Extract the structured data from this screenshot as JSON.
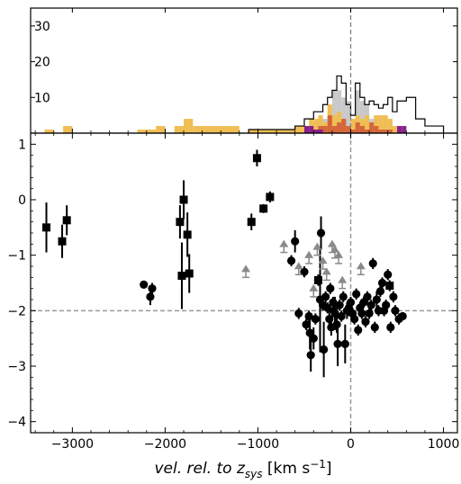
{
  "chart_data": [
    {
      "type": "histogram",
      "panel": "top",
      "ylim": [
        0,
        35
      ],
      "yticks": [
        "10",
        "20",
        "30"
      ],
      "grid": false,
      "series": [
        {
          "color": "#000000",
          "style": "step-outline",
          "edges": [
            -1100,
            -1000,
            -900,
            -800,
            -700,
            -600,
            -500,
            -400,
            -300,
            -250,
            -200,
            -150,
            -100,
            -50,
            0,
            50,
            100,
            150,
            200,
            250,
            300,
            350,
            400,
            450,
            500,
            600,
            700,
            800,
            900,
            1000
          ],
          "values": [
            1,
            1,
            1,
            1,
            1,
            2,
            4,
            6,
            8,
            10,
            12,
            16,
            14,
            8,
            5,
            14,
            10,
            8,
            9,
            8,
            7,
            8,
            10,
            6,
            9,
            10,
            4,
            2,
            2
          ]
        },
        {
          "color": "#c9c9c9",
          "style": "filled",
          "edges": [
            -400,
            -300,
            -250,
            -200,
            -150,
            -100,
            -50,
            0,
            50,
            100,
            150,
            200,
            250,
            300,
            350,
            400,
            450
          ],
          "values": [
            3,
            4,
            4,
            12,
            12,
            10,
            9,
            4,
            12,
            9,
            8,
            4,
            4,
            3,
            3,
            3
          ]
        },
        {
          "color": "#f0be55",
          "style": "filled",
          "edges": [
            -3300,
            -3200,
            -3100,
            -3000,
            -2900,
            -2300,
            -2200,
            -2100,
            -2000,
            -1900,
            -1800,
            -1700,
            -1200,
            -1100,
            -1000,
            -900,
            -800,
            -600,
            -500,
            -450,
            -400,
            -350,
            -300,
            -250,
            -200,
            -150,
            -100,
            -50,
            0,
            50,
            100,
            150,
            200,
            250,
            300,
            350,
            400,
            450,
            500
          ],
          "values": [
            1,
            0,
            2,
            0,
            0,
            1,
            1,
            2,
            0,
            2,
            4,
            2,
            0,
            1,
            1,
            1,
            1,
            2,
            2,
            4,
            4,
            5,
            3,
            8,
            5,
            6,
            4,
            2,
            4,
            5,
            4,
            5,
            2,
            5,
            5,
            5,
            4,
            2
          ]
        },
        {
          "color": "#d4663a",
          "style": "filled",
          "edges": [
            -400,
            -350,
            -300,
            -250,
            -200,
            -150,
            -100,
            -50,
            0,
            50,
            100,
            150,
            200,
            250,
            300,
            350,
            400,
            450
          ],
          "values": [
            1,
            2,
            2,
            5,
            2,
            3,
            4,
            2,
            1,
            3,
            2,
            1,
            3,
            2,
            1,
            1,
            1
          ]
        },
        {
          "color": "#8a1f8c",
          "style": "filled",
          "edges": [
            -500,
            -450,
            -400,
            -350,
            -300,
            -250,
            -200,
            -150,
            -100,
            -50,
            0,
            50,
            100,
            150,
            200,
            250,
            300,
            350,
            400,
            450,
            500,
            550,
            600
          ],
          "values": [
            2,
            2,
            1,
            1,
            0,
            0,
            0,
            0,
            0,
            0,
            0,
            0,
            0,
            0,
            0,
            0,
            0,
            0,
            0,
            0,
            2,
            2
          ]
        }
      ]
    },
    {
      "type": "scatter",
      "panel": "main",
      "xlabel_italic": "vel. rel. to z",
      "xlabel_sub": "sys",
      "xlabel_units": " [km s",
      "xlabel_sup": "−1",
      "xlabel_close": "]",
      "xlim": [
        -3450,
        1150
      ],
      "ylim": [
        -4.2,
        1.2
      ],
      "xticks": [
        -3000,
        -2000,
        -1000,
        0,
        1000
      ],
      "xtick_labels": [
        "−3000",
        "−2000",
        "−1000",
        "0",
        "1000"
      ],
      "yticks": [
        -4,
        -3,
        -2,
        -1,
        0,
        1
      ],
      "ytick_labels": [
        "−4",
        "−3",
        "−2",
        "−1",
        "0",
        "1"
      ],
      "reference_lines": {
        "x": 0,
        "y": -2,
        "color": "#999999",
        "style": "dashed"
      },
      "grid": false,
      "series": [
        {
          "marker": "square",
          "color": "#000000",
          "points": [
            {
              "x": -3280,
              "y": -0.5,
              "err": 0.45
            },
            {
              "x": -3110,
              "y": -0.75,
              "err": 0.3
            },
            {
              "x": -3060,
              "y": -0.37,
              "err": 0.27
            },
            {
              "x": -1840,
              "y": -0.4,
              "err": 0.3
            },
            {
              "x": -1820,
              "y": -1.37,
              "err": 0.6
            },
            {
              "x": -1800,
              "y": 0.0,
              "err": 0.35
            },
            {
              "x": -1760,
              "y": -0.63,
              "err": 0.4
            },
            {
              "x": -1740,
              "y": -1.33,
              "err": 0.35
            },
            {
              "x": -1070,
              "y": -0.4,
              "err": 0.15
            },
            {
              "x": -1010,
              "y": 0.75,
              "err": 0.15
            },
            {
              "x": -940,
              "y": -0.16,
              "err": 0.08
            },
            {
              "x": -870,
              "y": 0.05,
              "err": 0.1
            },
            {
              "x": -350,
              "y": -1.45,
              "err": 0.1
            },
            {
              "x": 420,
              "y": -1.55,
              "err": 0.1
            }
          ]
        },
        {
          "marker": "circle",
          "color": "#000000",
          "points": [
            {
              "x": -2230,
              "y": -1.53,
              "err": 0.05
            },
            {
              "x": -2160,
              "y": -1.75,
              "err": 0.15
            },
            {
              "x": -2140,
              "y": -1.6,
              "err": 0.1
            },
            {
              "x": -640,
              "y": -1.1,
              "err": 0.1
            },
            {
              "x": -600,
              "y": -0.75,
              "err": 0.2
            },
            {
              "x": -560,
              "y": -2.05,
              "err": 0.1
            },
            {
              "x": -500,
              "y": -1.3,
              "err": 0.1
            },
            {
              "x": -480,
              "y": -2.25,
              "err": 0.1
            },
            {
              "x": -450,
              "y": -2.1,
              "err": 0.1
            },
            {
              "x": -440,
              "y": -2.4,
              "err": 0.3
            },
            {
              "x": -430,
              "y": -2.8,
              "err": 0.3
            },
            {
              "x": -400,
              "y": -2.5,
              "err": 0.2
            },
            {
              "x": -380,
              "y": -2.15,
              "err": 0.1
            },
            {
              "x": -350,
              "y": -1.45,
              "err": 0.1
            },
            {
              "x": -330,
              "y": -1.8,
              "err": 0.95
            },
            {
              "x": -320,
              "y": -0.6,
              "err": 0.3
            },
            {
              "x": -300,
              "y": -1.9,
              "err": 0.1
            },
            {
              "x": -290,
              "y": -2.7,
              "err": 0.5
            },
            {
              "x": -270,
              "y": -1.75,
              "err": 0.1
            },
            {
              "x": -250,
              "y": -1.95,
              "err": 0.1
            },
            {
              "x": -230,
              "y": -2.15,
              "err": 0.15
            },
            {
              "x": -220,
              "y": -1.6,
              "err": 0.1
            },
            {
              "x": -210,
              "y": -2.3,
              "err": 0.15
            },
            {
              "x": -190,
              "y": -1.85,
              "err": 0.1
            },
            {
              "x": -180,
              "y": -2.0,
              "err": 0.1
            },
            {
              "x": -170,
              "y": -2.05,
              "err": 0.3
            },
            {
              "x": -150,
              "y": -2.25,
              "err": 0.15
            },
            {
              "x": -140,
              "y": -2.6,
              "err": 0.4
            },
            {
              "x": -120,
              "y": -1.9,
              "err": 0.1
            },
            {
              "x": -100,
              "y": -2.1,
              "err": 0.1
            },
            {
              "x": -80,
              "y": -1.75,
              "err": 0.1
            },
            {
              "x": -60,
              "y": -2.6,
              "err": 0.35
            },
            {
              "x": -40,
              "y": -2.0,
              "err": 0.15
            },
            {
              "x": -20,
              "y": -1.95,
              "err": 0.15
            },
            {
              "x": 0,
              "y": -1.85,
              "err": 0.1
            },
            {
              "x": 20,
              "y": -2.05,
              "err": 0.1
            },
            {
              "x": 40,
              "y": -2.15,
              "err": 0.1
            },
            {
              "x": 60,
              "y": -1.7,
              "err": 0.1
            },
            {
              "x": 80,
              "y": -2.35,
              "err": 0.1
            },
            {
              "x": 100,
              "y": -1.95,
              "err": 0.1
            },
            {
              "x": 120,
              "y": -2.05,
              "err": 0.1
            },
            {
              "x": 140,
              "y": -1.85,
              "err": 0.1
            },
            {
              "x": 160,
              "y": -2.2,
              "err": 0.1
            },
            {
              "x": 180,
              "y": -1.75,
              "err": 0.1
            },
            {
              "x": 200,
              "y": -2.05,
              "err": 0.1
            },
            {
              "x": 220,
              "y": -1.9,
              "err": 0.1
            },
            {
              "x": 240,
              "y": -1.15,
              "err": 0.1
            },
            {
              "x": 260,
              "y": -2.3,
              "err": 0.1
            },
            {
              "x": 280,
              "y": -1.8,
              "err": 0.15
            },
            {
              "x": 300,
              "y": -2.0,
              "err": 0.1
            },
            {
              "x": 320,
              "y": -1.65,
              "err": 0.1
            },
            {
              "x": 340,
              "y": -1.5,
              "err": 0.1
            },
            {
              "x": 360,
              "y": -2.0,
              "err": 0.1
            },
            {
              "x": 380,
              "y": -1.9,
              "err": 0.1
            },
            {
              "x": 400,
              "y": -1.35,
              "err": 0.1
            },
            {
              "x": 430,
              "y": -2.3,
              "err": 0.1
            },
            {
              "x": 460,
              "y": -1.75,
              "err": 0.1
            },
            {
              "x": 480,
              "y": -2.0,
              "err": 0.1
            },
            {
              "x": 520,
              "y": -2.15,
              "err": 0.1
            },
            {
              "x": 560,
              "y": -2.1,
              "err": 0.05
            }
          ]
        },
        {
          "marker": "lower-limit-arrow",
          "color": "#8a8a8a",
          "points": [
            {
              "x": -1130,
              "y": -1.4
            },
            {
              "x": -720,
              "y": -0.95
            },
            {
              "x": -560,
              "y": -1.35
            },
            {
              "x": -450,
              "y": -1.15
            },
            {
              "x": -400,
              "y": -1.75
            },
            {
              "x": -360,
              "y": -1.0
            },
            {
              "x": -300,
              "y": -1.25
            },
            {
              "x": -260,
              "y": -1.45
            },
            {
              "x": -200,
              "y": -0.95
            },
            {
              "x": -170,
              "y": -1.05
            },
            {
              "x": -130,
              "y": -1.15
            },
            {
              "x": -90,
              "y": -1.6
            },
            {
              "x": 110,
              "y": -1.35
            }
          ]
        }
      ]
    }
  ]
}
